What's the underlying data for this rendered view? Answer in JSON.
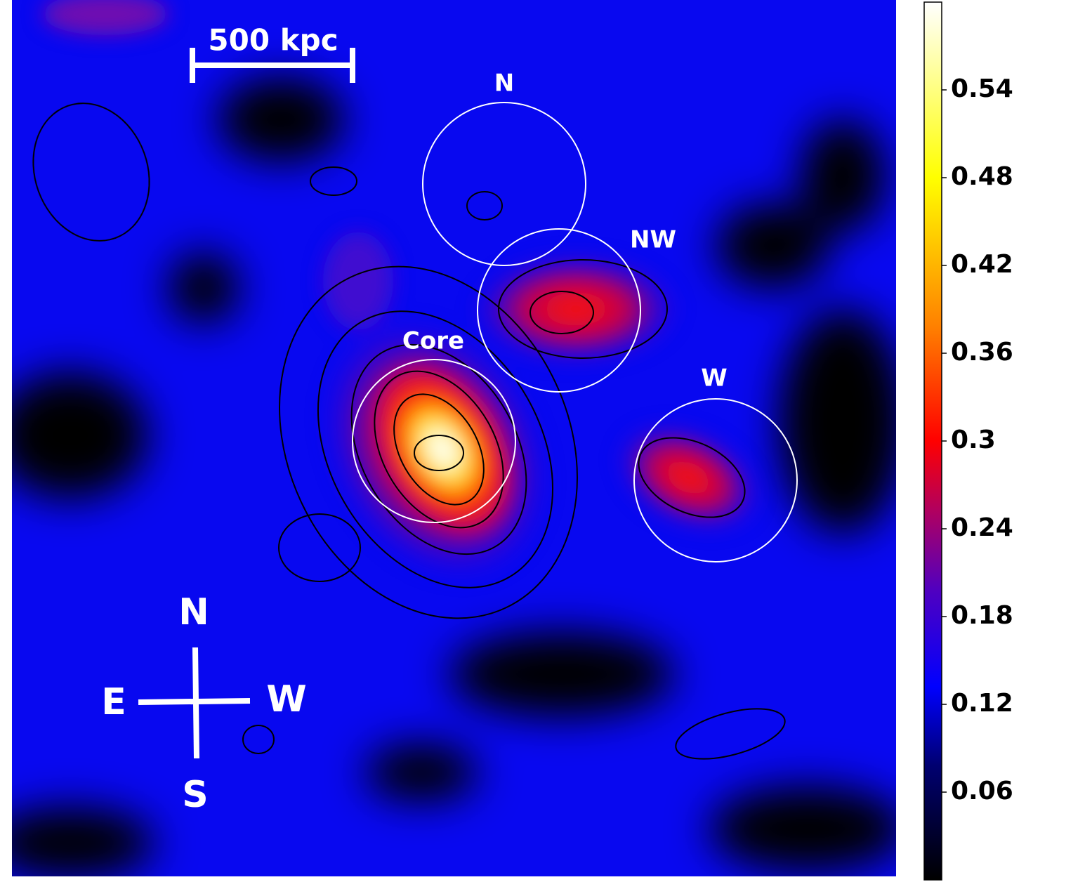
{
  "chart_data": {
    "type": "image",
    "zlim": [
      0,
      0.6
    ],
    "zticks": [
      0.06,
      0.12,
      0.18,
      0.24,
      0.3,
      0.36,
      0.42,
      0.48,
      0.54
    ],
    "regions": [
      "N",
      "NW",
      "Core",
      "W"
    ],
    "scale_bar": "500 kpc",
    "compass": [
      "N",
      "E",
      "W",
      "S"
    ]
  }
}
